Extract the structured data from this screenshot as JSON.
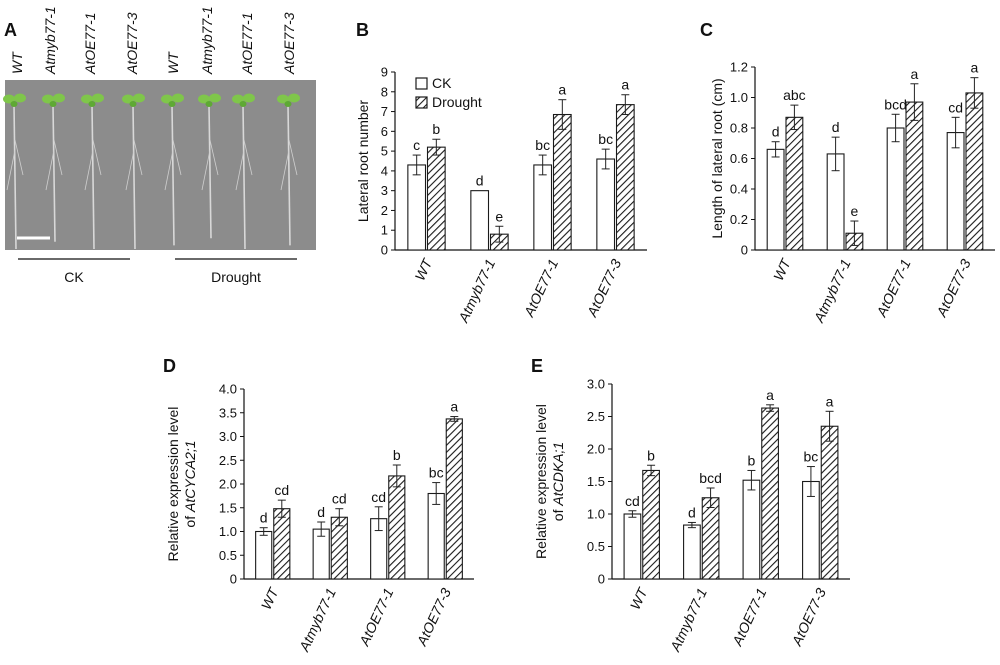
{
  "panel_a": {
    "letter": "A",
    "genotypes": [
      "WT",
      "Atmyb77-1",
      "AtOE77-1",
      "AtOE77-3",
      "WT",
      "Atmyb77-1",
      "AtOE77-1",
      "AtOE77-3"
    ],
    "groups": [
      "CK",
      "Drought"
    ],
    "photo_bg": "#8c8c8c",
    "leaf_color": "#7fc64a"
  },
  "legend": {
    "ck": "CK",
    "drought": "Drought"
  },
  "colors": {
    "bar_edge": "#1a1a1a",
    "ck_fill": "#ffffff",
    "hatch": "#1a1a1a"
  },
  "chart_data": [
    {
      "id": "B",
      "letter": "B",
      "type": "bar",
      "categories": [
        "WT",
        "Atmyb77-1",
        "AtOE77-1",
        "AtOE77-3"
      ],
      "ylabel": "Lateral root number",
      "ylabel_italic": "",
      "ylim": [
        0,
        9
      ],
      "yticks": [
        "0",
        "1",
        "2",
        "3",
        "4",
        "5",
        "6",
        "7",
        "8",
        "9"
      ],
      "series": [
        {
          "name": "CK",
          "values": [
            4.3,
            3.0,
            4.3,
            4.6
          ],
          "errors": [
            0.5,
            0,
            0.5,
            0.5
          ],
          "sig": [
            "c",
            "d",
            "bc",
            "bc"
          ]
        },
        {
          "name": "Drought",
          "values": [
            5.2,
            0.8,
            6.85,
            7.35
          ],
          "errors": [
            0.4,
            0.4,
            0.75,
            0.5
          ],
          "sig": [
            "b",
            "e",
            "a",
            "a"
          ]
        }
      ]
    },
    {
      "id": "C",
      "letter": "C",
      "type": "bar",
      "categories": [
        "WT",
        "Atmyb77-1",
        "AtOE77-1",
        "AtOE77-3"
      ],
      "ylabel": "Length of lateral root (cm)",
      "ylabel_italic": "",
      "ylim": [
        0,
        1.2
      ],
      "yticks": [
        "0",
        "0.2",
        "0.4",
        "0.6",
        "0.8",
        "1.0",
        "1.2"
      ],
      "series": [
        {
          "name": "CK",
          "values": [
            0.66,
            0.63,
            0.8,
            0.77
          ],
          "errors": [
            0.05,
            0.11,
            0.09,
            0.1
          ],
          "sig": [
            "d",
            "d",
            "bcd",
            "cd"
          ]
        },
        {
          "name": "Drought",
          "values": [
            0.87,
            0.11,
            0.97,
            1.03
          ],
          "errors": [
            0.08,
            0.08,
            0.12,
            0.1
          ],
          "sig": [
            "abc",
            "e",
            "a",
            "a"
          ]
        }
      ]
    },
    {
      "id": "D",
      "letter": "D",
      "type": "bar",
      "categories": [
        "WT",
        "Atmyb77-1",
        "AtOE77-1",
        "AtOE77-3"
      ],
      "ylabel": "Relative expression level",
      "ylabel_italic": "AtCYCA2;1",
      "ylim": [
        0,
        4.0
      ],
      "yticks": [
        "0",
        "0.5",
        "1.0",
        "1.5",
        "2.0",
        "2.5",
        "3.0",
        "3.5",
        "4.0"
      ],
      "series": [
        {
          "name": "CK",
          "values": [
            1.0,
            1.05,
            1.27,
            1.8
          ],
          "errors": [
            0.08,
            0.15,
            0.25,
            0.23
          ],
          "sig": [
            "d",
            "d",
            "cd",
            "bc"
          ]
        },
        {
          "name": "Drought",
          "values": [
            1.48,
            1.3,
            2.17,
            3.37
          ],
          "errors": [
            0.18,
            0.18,
            0.23,
            0.05
          ],
          "sig": [
            "cd",
            "cd",
            "b",
            "a"
          ]
        }
      ]
    },
    {
      "id": "E",
      "letter": "E",
      "type": "bar",
      "categories": [
        "WT",
        "Atmyb77-1",
        "AtOE77-1",
        "AtOE77-3"
      ],
      "ylabel": "Relative expression level",
      "ylabel_italic": "AtCDKA;1",
      "ylim": [
        0,
        3.0
      ],
      "yticks": [
        "0",
        "0.5",
        "1.0",
        "1.5",
        "2.0",
        "2.5",
        "3.0"
      ],
      "series": [
        {
          "name": "CK",
          "values": [
            1.0,
            0.83,
            1.52,
            1.5
          ],
          "errors": [
            0.05,
            0.04,
            0.15,
            0.23
          ],
          "sig": [
            "cd",
            "d",
            "b",
            "bc"
          ]
        },
        {
          "name": "Drought",
          "values": [
            1.67,
            1.25,
            2.63,
            2.35
          ],
          "errors": [
            0.08,
            0.15,
            0.05,
            0.23
          ],
          "sig": [
            "b",
            "bcd",
            "a",
            "a"
          ]
        }
      ]
    }
  ]
}
